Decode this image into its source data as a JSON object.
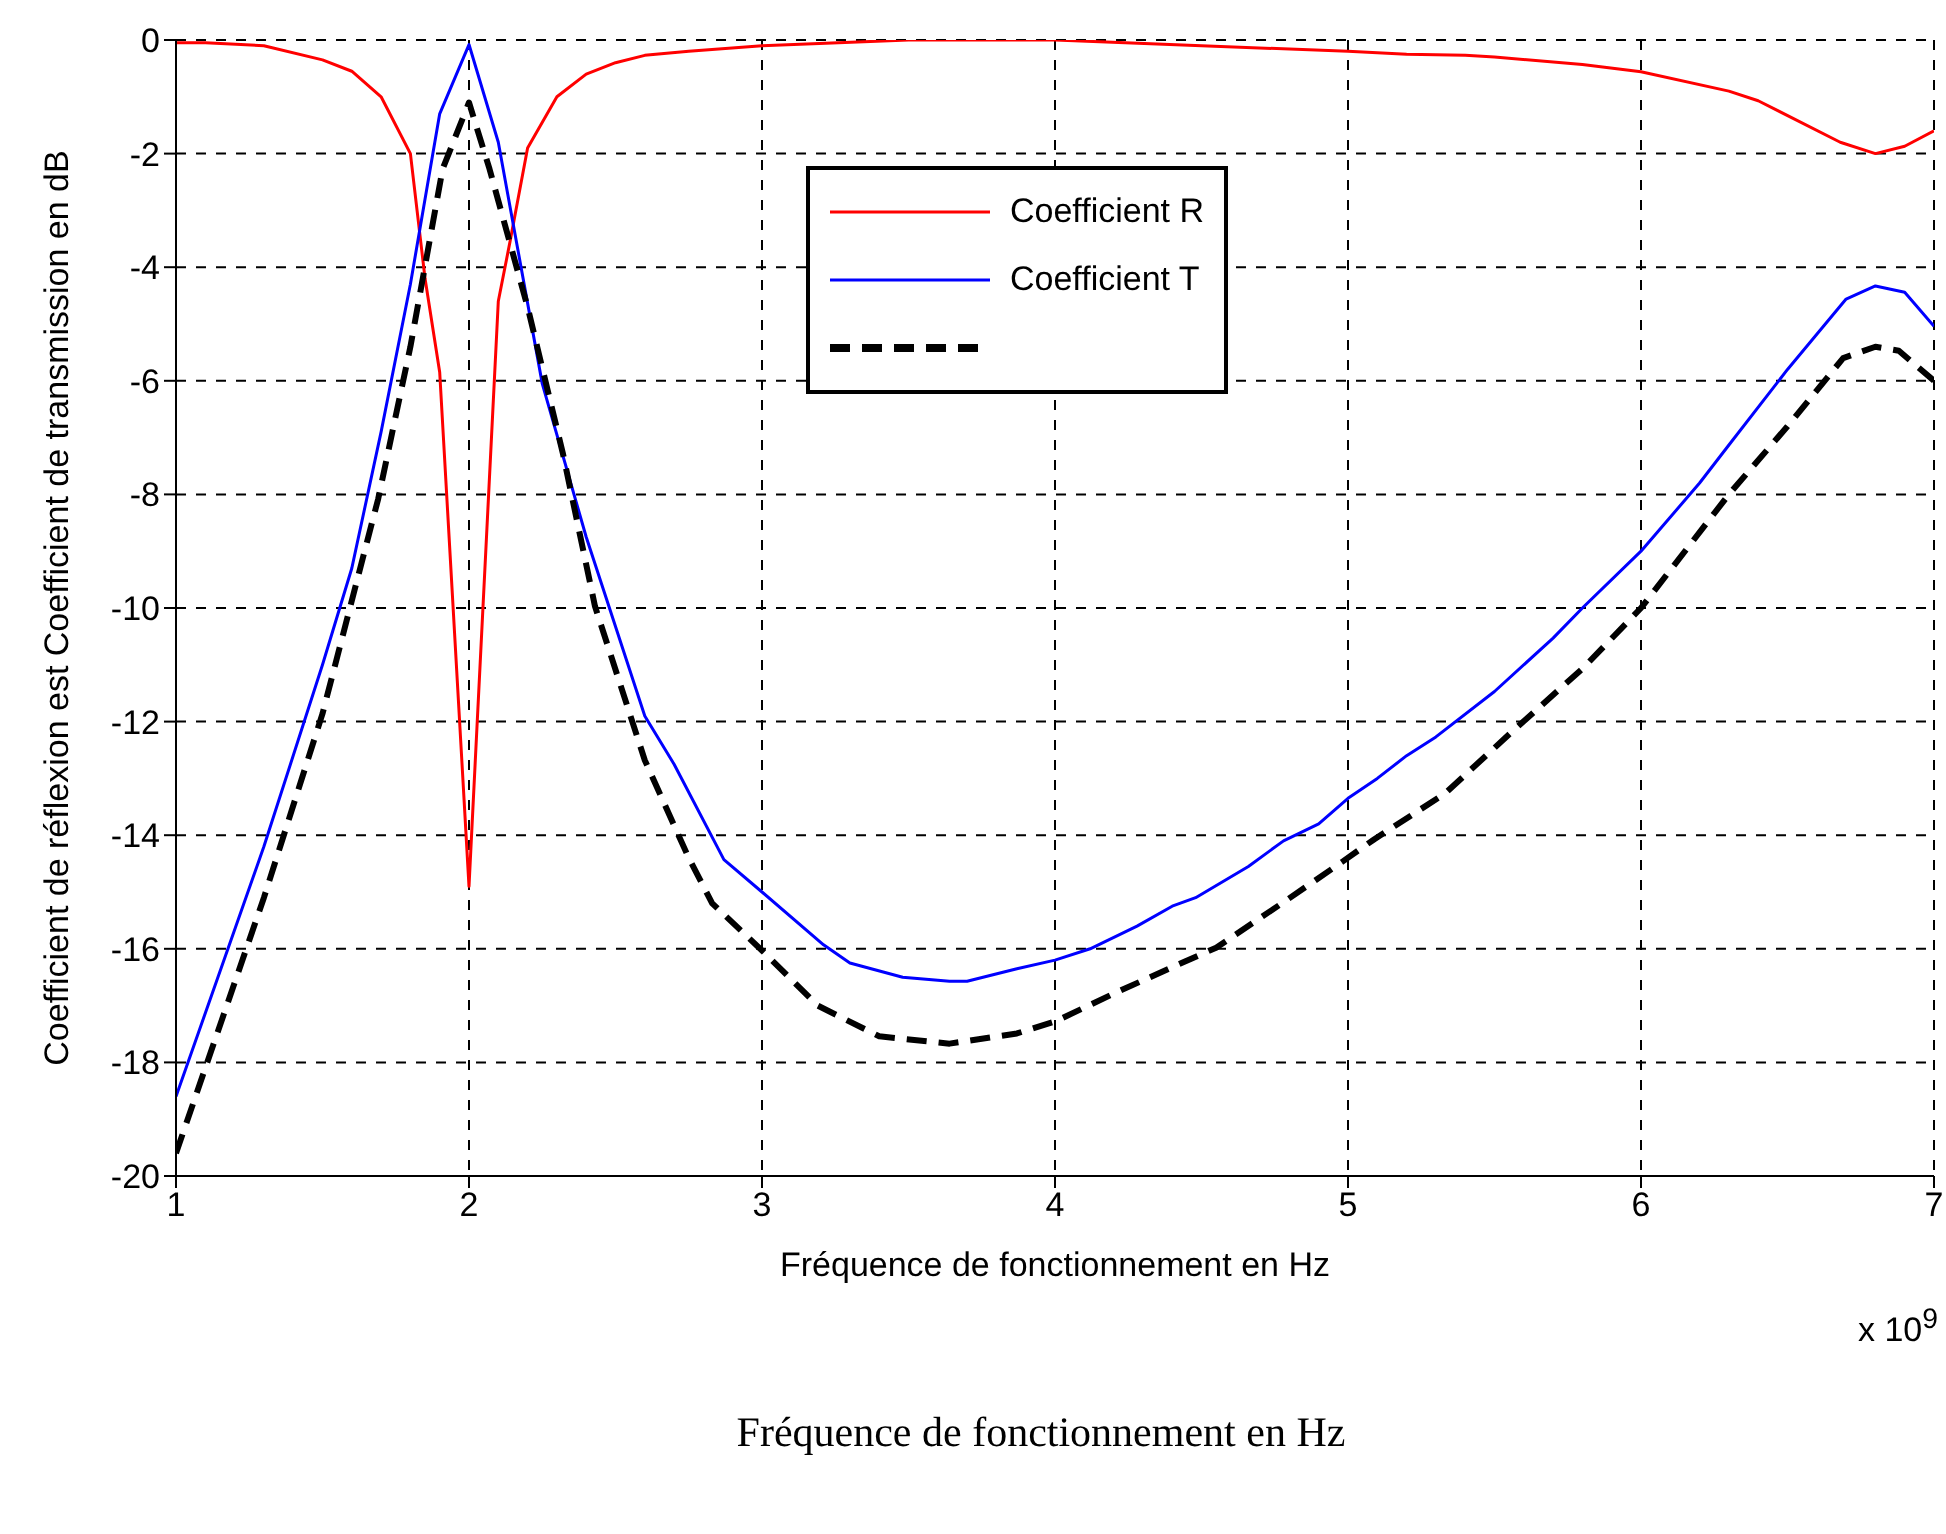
{
  "chart_data": {
    "type": "line",
    "xlabel": "Fréquence de fonctionnement en Hz",
    "ylabel": "Coefficient de réflexion est Coefficient de transmission en dB",
    "annotations": [
      "x 10$^{9}$",
      "Fréquence de fonctionnement en Hz"
    ],
    "xlim": [
      1,
      7
    ],
    "xticks": [
      1,
      2,
      3,
      4,
      5,
      6,
      7
    ],
    "ylim": [
      -20,
      0
    ],
    "yticks": [
      -20,
      -18,
      -16,
      -14,
      -12,
      -10,
      -8,
      -6,
      -4,
      -2,
      0
    ],
    "grid": true,
    "legend": "top",
    "marker": "none",
    "series": [
      {
        "name": "Coefficient R",
        "color": "#ff0000",
        "line_style": "solid",
        "x": [
          1,
          1.1,
          1.3,
          1.5,
          1.6,
          1.7,
          1.8,
          1.85,
          1.9,
          2,
          2.1,
          2.14,
          2.2,
          2.3,
          2.4,
          2.5,
          2.6,
          2.75,
          3,
          3.5,
          4,
          4.5,
          5,
          5.2,
          5.4,
          5.5,
          5.8,
          6,
          6.3,
          6.4,
          6.68,
          6.8,
          6.9,
          7
        ],
        "values": [
          -0.05,
          -0.05,
          -0.1,
          -0.35,
          -0.55,
          -1,
          -2,
          -4.2,
          -5.85,
          -14.9,
          -4.6,
          -3.55,
          -1.9,
          -1,
          -0.6,
          -0.4,
          -0.27,
          -0.2,
          -0.1,
          0,
          0,
          -0.1,
          -0.2,
          -0.25,
          -0.27,
          -0.3,
          -0.43,
          -0.56,
          -0.9,
          -1.07,
          -1.8,
          -2,
          -1.87,
          -1.6
        ]
      },
      {
        "name": "Coefficient T",
        "color": "#0000ff",
        "line_style": "solid",
        "x": [
          1,
          1.3,
          1.5,
          1.6,
          1.7,
          1.8,
          1.9,
          2,
          2.1,
          2.25,
          2.4,
          2.6,
          2.7,
          2.87,
          3,
          3.21,
          3.3,
          3.48,
          3.64,
          3.7,
          3.87,
          4,
          4.12,
          4.28,
          4.4,
          4.48,
          4.66,
          4.78,
          4.9,
          5,
          5.1,
          5.2,
          5.3,
          5.5,
          5.7,
          5.8,
          6,
          6.2,
          6.3,
          6.5,
          6.7,
          6.8,
          6.9,
          7
        ],
        "values": [
          -18.6,
          -14.2,
          -11,
          -9.3,
          -6.9,
          -4.3,
          -1.3,
          -0.08,
          -1.8,
          -6.05,
          -8.75,
          -11.9,
          -12.75,
          -14.43,
          -15,
          -15.93,
          -16.25,
          -16.5,
          -16.57,
          -16.57,
          -16.35,
          -16.2,
          -16,
          -15.6,
          -15.25,
          -15.1,
          -14.55,
          -14.1,
          -13.8,
          -13.35,
          -13,
          -12.6,
          -12.27,
          -11.47,
          -10.53,
          -10,
          -9,
          -7.8,
          -7.13,
          -5.8,
          -4.56,
          -4.33,
          -4.44,
          -5.04
        ]
      },
      {
        "color": "#000000",
        "line_style": "dashed",
        "x": [
          1,
          1.3,
          1.5,
          1.69,
          1.8,
          1.91,
          2,
          2.07,
          2.2,
          2.32,
          2.43,
          2.6,
          2.75,
          2.83,
          3,
          3.19,
          3.4,
          3.64,
          3.87,
          4,
          4.2,
          4.41,
          4.55,
          4.78,
          4.98,
          5.09,
          5.33,
          5.57,
          5.8,
          6,
          6.3,
          6.5,
          6.69,
          6.8,
          6.88,
          7
        ],
        "values": [
          -19.6,
          -15.1,
          -11.86,
          -8.08,
          -5.4,
          -2.27,
          -1.1,
          -2.27,
          -4.7,
          -7.27,
          -9.97,
          -12.68,
          -14.4,
          -15.2,
          -16.03,
          -17,
          -17.54,
          -17.67,
          -17.49,
          -17.28,
          -16.79,
          -16.3,
          -15.98,
          -15.18,
          -14.47,
          -14.07,
          -13.27,
          -12.13,
          -11.07,
          -10,
          -8,
          -6.8,
          -5.6,
          -5.4,
          -5.47,
          -6
        ]
      }
    ]
  }
}
